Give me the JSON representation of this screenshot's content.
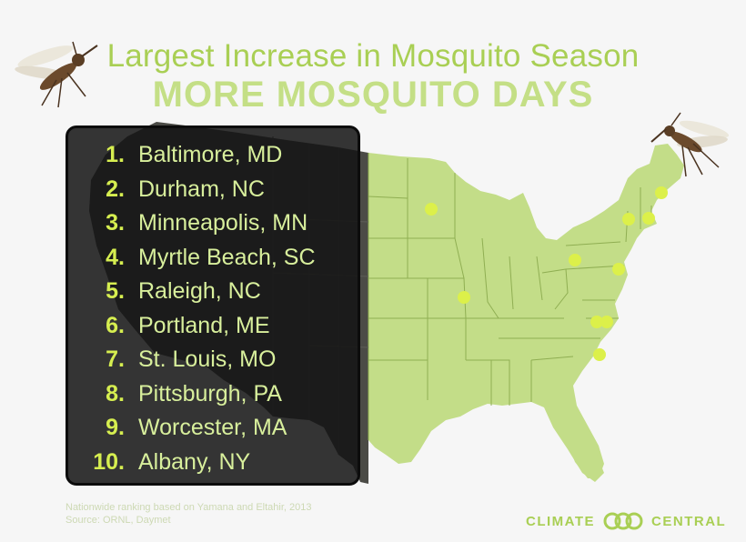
{
  "title": "Largest Increase in Mosquito Season",
  "subtitle": "MORE MOSQUITO DAYS",
  "rankings": [
    {
      "rank": "1.",
      "city": "Baltimore, MD"
    },
    {
      "rank": "2.",
      "city": "Durham, NC"
    },
    {
      "rank": "3.",
      "city": "Minneapolis, MN"
    },
    {
      "rank": "4.",
      "city": "Myrtle Beach, SC"
    },
    {
      "rank": "5.",
      "city": "Raleigh, NC"
    },
    {
      "rank": "6.",
      "city": "Portland, ME"
    },
    {
      "rank": "7.",
      "city": "St. Louis, MO"
    },
    {
      "rank": "8.",
      "city": "Pittsburgh, PA"
    },
    {
      "rank": "9.",
      "city": "Worcester, MA"
    },
    {
      "rank": "10.",
      "city": "Albany, NY"
    }
  ],
  "footnote": {
    "line1": "Nationwide ranking based on Yamana and Eltahir, 2013",
    "line2": "Source: ORNL, Daymet"
  },
  "logo": {
    "left_word": "CLIMATE",
    "right_word": "CENTRAL"
  },
  "colors": {
    "land": "#c3dd88",
    "land_dark": "#4b4b46",
    "border": "#8fae52",
    "marker": "#dcf04a",
    "title": "#a9cf54",
    "subtitle": "#c4df86",
    "panel": "#141414"
  },
  "icons": [
    "mosquito-icon",
    "climate-central-logo-icon"
  ]
}
